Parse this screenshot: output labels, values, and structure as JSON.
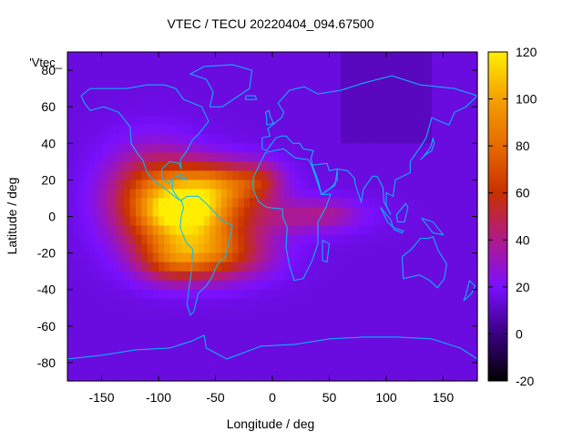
{
  "chart_data": {
    "type": "heatmap",
    "title": "VTEC / TECU 20220404_094.67500",
    "xlabel": "Longitude / deg",
    "ylabel": "Latitude / deg",
    "key_label": "'Vtec_",
    "xlim": [
      -180,
      180
    ],
    "ylim": [
      -90,
      90
    ],
    "xticks": [
      -150,
      -100,
      -50,
      0,
      50,
      100,
      150
    ],
    "yticks": [
      -80,
      -60,
      -40,
      -20,
      0,
      20,
      40,
      60,
      80
    ],
    "colorbar": {
      "range": [
        -20,
        120
      ],
      "ticks": [
        -20,
        0,
        20,
        40,
        60,
        80,
        100,
        120
      ],
      "stops": [
        {
          "value": -20,
          "color": "#000000"
        },
        {
          "value": 0,
          "color": "#3a0080"
        },
        {
          "value": 20,
          "color": "#7a10ff"
        },
        {
          "value": 40,
          "color": "#b01a8a"
        },
        {
          "value": 60,
          "color": "#c83000"
        },
        {
          "value": 80,
          "color": "#e66a00"
        },
        {
          "value": 100,
          "color": "#f5a000"
        },
        {
          "value": 120,
          "color": "#ffee00"
        }
      ]
    },
    "background_value": 15,
    "tec_features": [
      {
        "lon": -105,
        "lat": 10,
        "value": 52,
        "sigma_lon": 28,
        "sigma_lat": 18
      },
      {
        "lon": -70,
        "lat": 2,
        "value": 70,
        "sigma_lon": 30,
        "sigma_lat": 14
      },
      {
        "lon": -80,
        "lat": 2,
        "value": 20,
        "sigma_lon": 18,
        "sigma_lat": 6
      },
      {
        "lon": -45,
        "lat": 17,
        "value": 48,
        "sigma_lon": 28,
        "sigma_lat": 9
      },
      {
        "lon": -55,
        "lat": -20,
        "value": 55,
        "sigma_lon": 34,
        "sigma_lat": 10
      },
      {
        "lon": -90,
        "lat": -25,
        "value": 25,
        "sigma_lon": 20,
        "sigma_lat": 8
      },
      {
        "lon": -10,
        "lat": 20,
        "value": 22,
        "sigma_lon": 14,
        "sigma_lat": 7
      },
      {
        "lon": 15,
        "lat": 0,
        "value": 20,
        "sigma_lon": 40,
        "sigma_lat": 7
      },
      {
        "lon": 50,
        "lat": 2,
        "value": 10,
        "sigma_lon": 18,
        "sigma_lat": 5
      }
    ],
    "continent_outline_color": "#00c0ff",
    "continents": [
      {
        "name": "North America",
        "points": [
          [
            -168,
            66
          ],
          [
            -160,
            70
          ],
          [
            -140,
            70
          ],
          [
            -128,
            70
          ],
          [
            -110,
            72
          ],
          [
            -95,
            72
          ],
          [
            -85,
            70
          ],
          [
            -78,
            64
          ],
          [
            -62,
            60
          ],
          [
            -56,
            52
          ],
          [
            -65,
            45
          ],
          [
            -70,
            42
          ],
          [
            -76,
            35
          ],
          [
            -81,
            31
          ],
          [
            -80,
            26
          ],
          [
            -82,
            29
          ],
          [
            -90,
            30
          ],
          [
            -97,
            26
          ],
          [
            -97,
            21
          ],
          [
            -91,
            18
          ],
          [
            -87,
            21
          ],
          [
            -88,
            15
          ],
          [
            -83,
            10
          ],
          [
            -79,
            8
          ],
          [
            -84,
            10
          ],
          [
            -92,
            14
          ],
          [
            -105,
            20
          ],
          [
            -110,
            24
          ],
          [
            -114,
            31
          ],
          [
            -118,
            34
          ],
          [
            -124,
            40
          ],
          [
            -125,
            49
          ],
          [
            -135,
            57
          ],
          [
            -148,
            60
          ],
          [
            -160,
            58
          ],
          [
            -165,
            62
          ],
          [
            -168,
            66
          ]
        ]
      },
      {
        "name": "Greenland",
        "points": [
          [
            -55,
            60
          ],
          [
            -44,
            60
          ],
          [
            -20,
            70
          ],
          [
            -18,
            80
          ],
          [
            -35,
            83
          ],
          [
            -60,
            82
          ],
          [
            -72,
            78
          ],
          [
            -58,
            75
          ],
          [
            -52,
            68
          ],
          [
            -55,
            60
          ]
        ]
      },
      {
        "name": "South America",
        "points": [
          [
            -80,
            9
          ],
          [
            -75,
            11
          ],
          [
            -65,
            11
          ],
          [
            -58,
            7
          ],
          [
            -50,
            2
          ],
          [
            -45,
            -2
          ],
          [
            -35,
            -5
          ],
          [
            -38,
            -13
          ],
          [
            -41,
            -22
          ],
          [
            -48,
            -26
          ],
          [
            -53,
            -33
          ],
          [
            -58,
            -38
          ],
          [
            -65,
            -42
          ],
          [
            -67,
            -47
          ],
          [
            -69,
            -52
          ],
          [
            -72,
            -54
          ],
          [
            -75,
            -48
          ],
          [
            -73,
            -38
          ],
          [
            -71,
            -30
          ],
          [
            -70,
            -18
          ],
          [
            -76,
            -14
          ],
          [
            -81,
            -6
          ],
          [
            -80,
            0
          ],
          [
            -78,
            5
          ],
          [
            -80,
            9
          ]
        ]
      },
      {
        "name": "Africa",
        "points": [
          [
            -17,
            15
          ],
          [
            -17,
            21
          ],
          [
            -10,
            30
          ],
          [
            -6,
            35
          ],
          [
            10,
            37
          ],
          [
            20,
            32
          ],
          [
            32,
            31
          ],
          [
            35,
            27
          ],
          [
            43,
            12
          ],
          [
            51,
            12
          ],
          [
            47,
            5
          ],
          [
            40,
            -3
          ],
          [
            40,
            -15
          ],
          [
            35,
            -24
          ],
          [
            27,
            -34
          ],
          [
            19,
            -35
          ],
          [
            15,
            -27
          ],
          [
            12,
            -17
          ],
          [
            13,
            -6
          ],
          [
            9,
            0
          ],
          [
            9,
            4
          ],
          [
            -5,
            5
          ],
          [
            -12,
            8
          ],
          [
            -17,
            15
          ]
        ]
      },
      {
        "name": "Eurasia",
        "points": [
          [
            -9,
            37
          ],
          [
            -9,
            43
          ],
          [
            -2,
            44
          ],
          [
            -4,
            48
          ],
          [
            2,
            51
          ],
          [
            8,
            54
          ],
          [
            10,
            57
          ],
          [
            5,
            62
          ],
          [
            15,
            69
          ],
          [
            28,
            71
          ],
          [
            40,
            67
          ],
          [
            60,
            69
          ],
          [
            80,
            73
          ],
          [
            105,
            77
          ],
          [
            130,
            72
          ],
          [
            160,
            70
          ],
          [
            180,
            66
          ],
          [
            170,
            60
          ],
          [
            160,
            57
          ],
          [
            155,
            50
          ],
          [
            140,
            54
          ],
          [
            135,
            43
          ],
          [
            130,
            38
          ],
          [
            121,
            30
          ],
          [
            121,
            24
          ],
          [
            108,
            20
          ],
          [
            106,
            11
          ],
          [
            100,
            13
          ],
          [
            100,
            6
          ],
          [
            104,
            1
          ],
          [
            98,
            8
          ],
          [
            97,
            16
          ],
          [
            92,
            22
          ],
          [
            88,
            22
          ],
          [
            80,
            15
          ],
          [
            78,
            8
          ],
          [
            73,
            17
          ],
          [
            72,
            21
          ],
          [
            66,
            25
          ],
          [
            57,
            26
          ],
          [
            55,
            17
          ],
          [
            43,
            12
          ],
          [
            40,
            20
          ],
          [
            35,
            28
          ],
          [
            34,
            32
          ],
          [
            36,
            36
          ],
          [
            27,
            37
          ],
          [
            24,
            40
          ],
          [
            18,
            40
          ],
          [
            12,
            44
          ],
          [
            8,
            44
          ],
          [
            3,
            43
          ],
          [
            -5,
            36
          ],
          [
            -9,
            37
          ]
        ]
      },
      {
        "name": "Arabian Peninsula",
        "points": [
          [
            35,
            28
          ],
          [
            40,
            20
          ],
          [
            43,
            12
          ],
          [
            52,
            16
          ],
          [
            57,
            20
          ],
          [
            57,
            26
          ],
          [
            50,
            25
          ],
          [
            48,
            29
          ],
          [
            35,
            28
          ]
        ]
      },
      {
        "name": "Australia",
        "points": [
          [
            114,
            -22
          ],
          [
            122,
            -18
          ],
          [
            130,
            -12
          ],
          [
            137,
            -12
          ],
          [
            141,
            -11
          ],
          [
            146,
            -19
          ],
          [
            153,
            -26
          ],
          [
            151,
            -34
          ],
          [
            145,
            -39
          ],
          [
            138,
            -35
          ],
          [
            129,
            -32
          ],
          [
            115,
            -34
          ],
          [
            114,
            -22
          ]
        ]
      },
      {
        "name": "Antarctica",
        "points": [
          [
            -180,
            -78
          ],
          [
            -150,
            -76
          ],
          [
            -120,
            -73
          ],
          [
            -90,
            -72
          ],
          [
            -70,
            -68
          ],
          [
            -60,
            -65
          ],
          [
            -58,
            -72
          ],
          [
            -40,
            -78
          ],
          [
            -10,
            -71
          ],
          [
            20,
            -70
          ],
          [
            50,
            -67
          ],
          [
            80,
            -66
          ],
          [
            110,
            -66
          ],
          [
            140,
            -67
          ],
          [
            165,
            -72
          ],
          [
            180,
            -78
          ]
        ]
      },
      {
        "name": "UK",
        "points": [
          [
            -5,
            50
          ],
          [
            1,
            51
          ],
          [
            -2,
            55
          ],
          [
            -3,
            58
          ],
          [
            -6,
            57
          ],
          [
            -5,
            54
          ],
          [
            -5,
            50
          ]
        ]
      },
      {
        "name": "Japan",
        "points": [
          [
            130,
            31
          ],
          [
            135,
            34
          ],
          [
            140,
            36
          ],
          [
            142,
            40
          ],
          [
            141,
            43
          ],
          [
            139,
            38
          ],
          [
            133,
            33
          ],
          [
            130,
            31
          ]
        ]
      },
      {
        "name": "Madagascar",
        "points": [
          [
            44,
            -13
          ],
          [
            50,
            -15
          ],
          [
            48,
            -25
          ],
          [
            44,
            -24
          ],
          [
            44,
            -13
          ]
        ]
      },
      {
        "name": "New Zealand",
        "points": [
          [
            173,
            -35
          ],
          [
            178,
            -38
          ],
          [
            175,
            -42
          ],
          [
            172,
            -44
          ],
          [
            168,
            -46
          ],
          [
            170,
            -43
          ],
          [
            173,
            -35
          ]
        ]
      },
      {
        "name": "Borneo",
        "points": [
          [
            109,
            1
          ],
          [
            117,
            7
          ],
          [
            119,
            5
          ],
          [
            116,
            -3
          ],
          [
            110,
            -3
          ],
          [
            109,
            1
          ]
        ]
      },
      {
        "name": "Sumatra",
        "points": [
          [
            95,
            5
          ],
          [
            104,
            -2
          ],
          [
            106,
            -6
          ],
          [
            101,
            -3
          ],
          [
            95,
            5
          ]
        ]
      },
      {
        "name": "Indonesia",
        "points": [
          [
            106,
            -6
          ],
          [
            115,
            -8
          ],
          [
            114,
            -9
          ],
          [
            106,
            -7
          ]
        ]
      },
      {
        "name": "New Guinea",
        "points": [
          [
            131,
            -1
          ],
          [
            141,
            -3
          ],
          [
            150,
            -10
          ],
          [
            141,
            -9
          ],
          [
            131,
            -1
          ]
        ]
      },
      {
        "name": "Cuba",
        "points": [
          [
            -85,
            22
          ],
          [
            -75,
            20
          ],
          [
            -80,
            23
          ],
          [
            -85,
            22
          ]
        ]
      },
      {
        "name": "Iceland",
        "points": [
          [
            -24,
            64
          ],
          [
            -14,
            64
          ],
          [
            -15,
            66
          ],
          [
            -23,
            66
          ],
          [
            -24,
            64
          ]
        ]
      }
    ]
  }
}
